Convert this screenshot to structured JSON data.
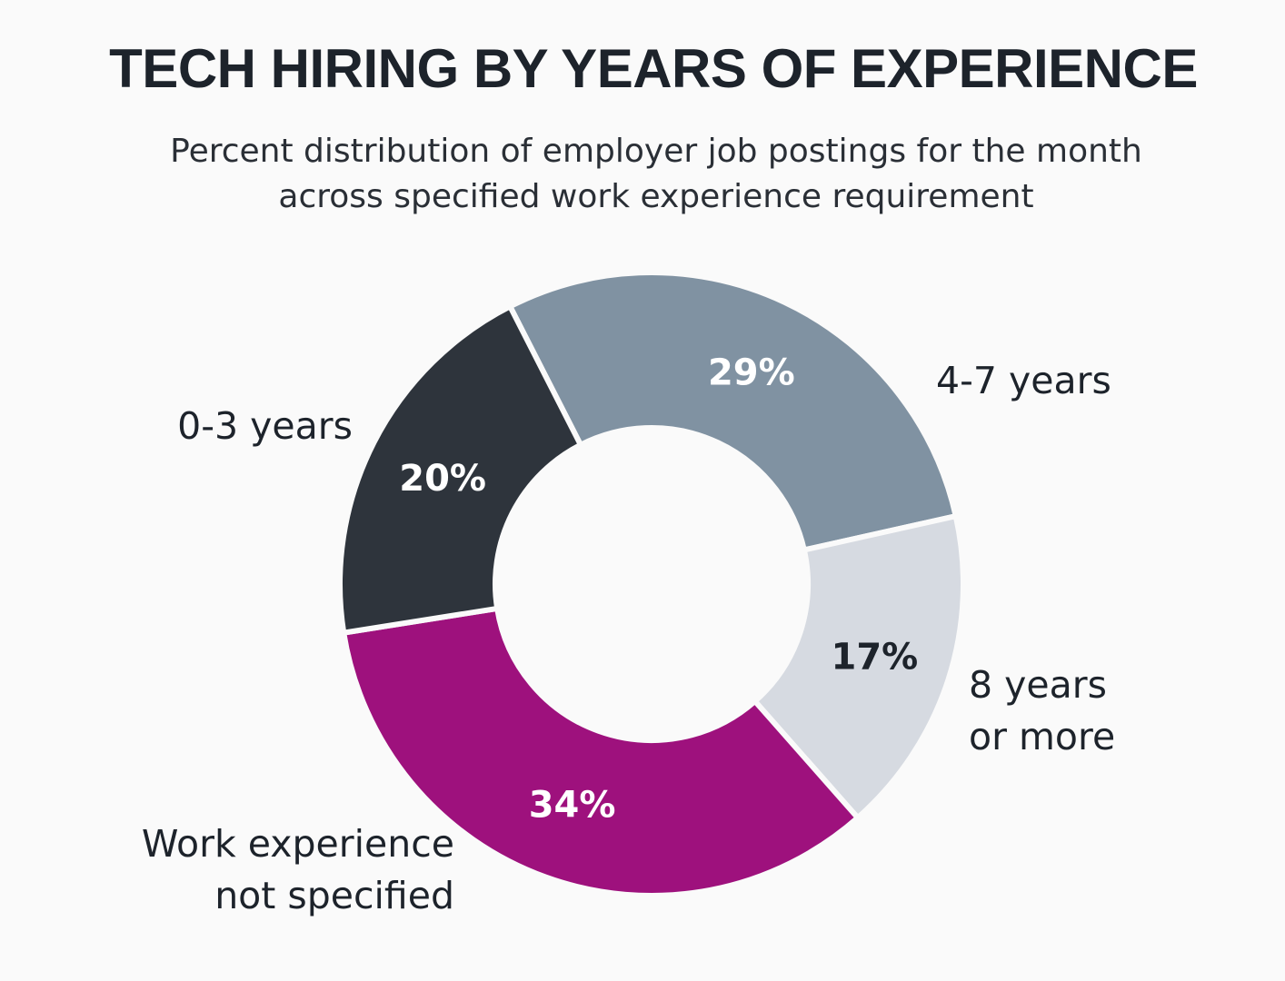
{
  "chart_data": {
    "type": "pie",
    "title": "TECH HIRING BY YEARS OF EXPERIENCE",
    "subtitle": "Percent distribution of employer job postings for the month across specified work experience requirement",
    "slices": [
      {
        "label": "4-7 years",
        "label_lines": [
          "4-7 years"
        ],
        "value": 29,
        "value_label": "29%",
        "color": "#8092a2",
        "text_color": "#ffffff"
      },
      {
        "label": "8 years or more",
        "label_lines": [
          "8 years",
          "or more"
        ],
        "value": 17,
        "value_label": "17%",
        "color": "#d6dae1",
        "text_color": "#1d232b"
      },
      {
        "label": "Work experience not specified",
        "label_lines": [
          "Work experience",
          "not specified"
        ],
        "value": 34,
        "value_label": "34%",
        "color": "#9e117d",
        "text_color": "#ffffff"
      },
      {
        "label": "0-3 years",
        "label_lines": [
          "0-3 years"
        ],
        "value": 20,
        "value_label": "20%",
        "color": "#2e343c",
        "text_color": "#ffffff"
      }
    ],
    "donut": true,
    "legend": "none"
  }
}
